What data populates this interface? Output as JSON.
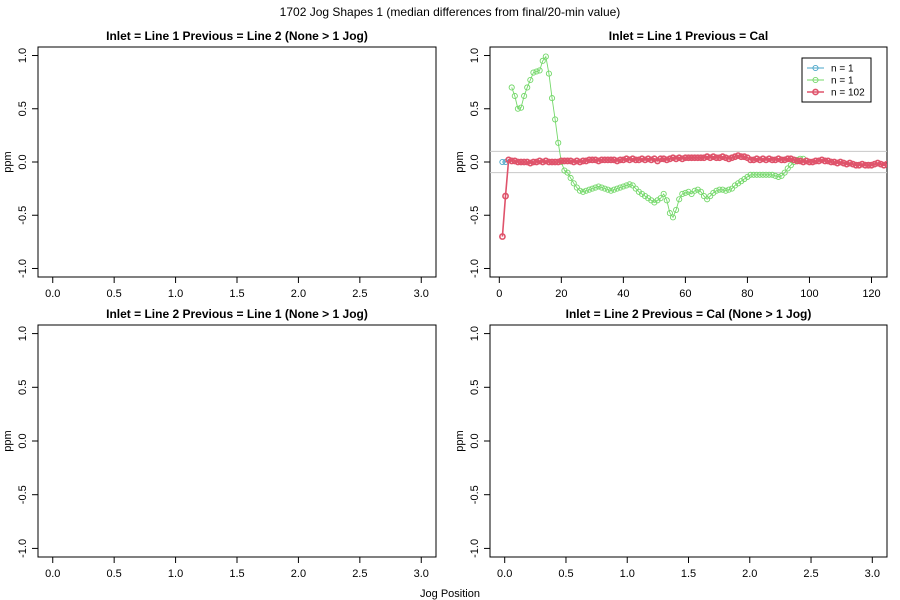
{
  "figure": {
    "title": "1702 Jog Shapes 1 (median differences from final/20-min value)",
    "xlabel": "Jog Position"
  },
  "chart_data": [
    {
      "type": "scatter",
      "title": "Inlet = Line 1  Previous = Line 2 (None > 1 Jog)",
      "xlabel": "",
      "ylabel": "ppm",
      "xlim": [
        0,
        3
      ],
      "ylim": [
        -1,
        1
      ],
      "xticks": [
        "0.0",
        "0.5",
        "1.0",
        "1.5",
        "2.0",
        "2.5",
        "3.0"
      ],
      "yticks": [
        "-1.0",
        "-0.5",
        "0.0",
        "0.5",
        "1.0"
      ],
      "series": [],
      "legend": null
    },
    {
      "type": "line",
      "title": "Inlet = Line 1  Previous = Cal",
      "xlabel": "",
      "ylabel": "ppm",
      "xlim": [
        0,
        125
      ],
      "ylim": [
        -1,
        1
      ],
      "xticks": [
        "0",
        "20",
        "40",
        "60",
        "80",
        "100",
        "120"
      ],
      "yticks": [
        "-1.0",
        "-0.5",
        "0.0",
        "0.5",
        "1.0"
      ],
      "reference_lines_y": [
        0.1,
        -0.1
      ],
      "legend": "top-right",
      "series": [
        {
          "name": "n = 1",
          "color": "#4aa6c8",
          "x": [
            1,
            2,
            3
          ],
          "y": [
            0.0,
            0.0,
            0.02
          ]
        },
        {
          "name": "n = 1",
          "color": "#74d86a",
          "x": [
            4,
            5,
            6,
            7,
            8,
            9,
            10,
            11,
            12,
            13,
            14,
            15,
            16,
            17,
            18,
            19,
            20,
            21,
            22,
            23,
            24,
            25,
            26,
            27,
            28,
            29,
            30,
            31,
            32,
            33,
            34,
            35,
            36,
            37,
            38,
            39,
            40,
            41,
            42,
            43,
            44,
            45,
            46,
            47,
            48,
            49,
            50,
            51,
            52,
            53,
            54,
            55,
            56,
            57,
            58,
            59,
            60,
            61,
            62,
            63,
            64,
            65,
            66,
            67,
            68,
            69,
            70,
            71,
            72,
            73,
            74,
            75,
            76,
            77,
            78,
            79,
            80,
            81,
            82,
            83,
            84,
            85,
            86,
            87,
            88,
            89,
            90,
            91,
            92,
            93,
            94,
            95,
            96,
            97,
            98
          ],
          "y": [
            0.7,
            0.62,
            0.5,
            0.51,
            0.62,
            0.7,
            0.77,
            0.84,
            0.85,
            0.86,
            0.95,
            0.99,
            0.83,
            0.6,
            0.4,
            0.18,
            0.0,
            -0.08,
            -0.1,
            -0.15,
            -0.2,
            -0.24,
            -0.27,
            -0.28,
            -0.27,
            -0.26,
            -0.25,
            -0.24,
            -0.23,
            -0.24,
            -0.25,
            -0.26,
            -0.27,
            -0.26,
            -0.25,
            -0.24,
            -0.23,
            -0.22,
            -0.21,
            -0.22,
            -0.25,
            -0.28,
            -0.3,
            -0.32,
            -0.34,
            -0.36,
            -0.38,
            -0.36,
            -0.34,
            -0.3,
            -0.36,
            -0.48,
            -0.52,
            -0.45,
            -0.35,
            -0.3,
            -0.29,
            -0.28,
            -0.3,
            -0.27,
            -0.26,
            -0.28,
            -0.32,
            -0.35,
            -0.32,
            -0.29,
            -0.27,
            -0.26,
            -0.26,
            -0.27,
            -0.26,
            -0.25,
            -0.22,
            -0.2,
            -0.18,
            -0.16,
            -0.14,
            -0.12,
            -0.12,
            -0.12,
            -0.12,
            -0.12,
            -0.12,
            -0.12,
            -0.12,
            -0.13,
            -0.14,
            -0.13,
            -0.1,
            -0.06,
            -0.03,
            0.0,
            0.02,
            0.03,
            0.03
          ]
        },
        {
          "name": "n = 102",
          "color": "#df536b",
          "x": [
            1,
            2,
            3,
            4,
            5,
            6,
            7,
            8,
            9,
            10,
            11,
            12,
            13,
            14,
            15,
            16,
            17,
            18,
            19,
            20,
            21,
            22,
            23,
            24,
            25,
            26,
            27,
            28,
            29,
            30,
            31,
            32,
            33,
            34,
            35,
            36,
            37,
            38,
            39,
            40,
            41,
            42,
            43,
            44,
            45,
            46,
            47,
            48,
            49,
            50,
            51,
            52,
            53,
            54,
            55,
            56,
            57,
            58,
            59,
            60,
            61,
            62,
            63,
            64,
            65,
            66,
            67,
            68,
            69,
            70,
            71,
            72,
            73,
            74,
            75,
            76,
            77,
            78,
            79,
            80,
            81,
            82,
            83,
            84,
            85,
            86,
            87,
            88,
            89,
            90,
            91,
            92,
            93,
            94,
            95,
            96,
            97,
            98,
            99,
            100,
            101,
            102,
            103,
            104,
            105,
            106,
            107,
            108,
            109,
            110,
            111,
            112,
            113,
            114,
            115,
            116,
            117,
            118,
            119,
            120,
            121,
            122,
            123,
            124,
            125
          ],
          "y": [
            -0.7,
            -0.32,
            0.02,
            0.01,
            0.01,
            0.0,
            0.0,
            0.0,
            0.0,
            -0.01,
            0.0,
            0.0,
            0.01,
            0.0,
            0.01,
            0.0,
            0.0,
            0.0,
            0.0,
            0.01,
            0.01,
            0.01,
            0.01,
            0.0,
            0.01,
            0.0,
            0.01,
            0.01,
            0.02,
            0.02,
            0.02,
            0.01,
            0.02,
            0.02,
            0.02,
            0.02,
            0.02,
            0.01,
            0.02,
            0.02,
            0.03,
            0.02,
            0.03,
            0.02,
            0.02,
            0.03,
            0.02,
            0.03,
            0.02,
            0.03,
            0.01,
            0.03,
            0.03,
            0.02,
            0.03,
            0.04,
            0.03,
            0.04,
            0.03,
            0.04,
            0.04,
            0.04,
            0.04,
            0.04,
            0.04,
            0.04,
            0.05,
            0.04,
            0.05,
            0.04,
            0.04,
            0.05,
            0.04,
            0.03,
            0.04,
            0.05,
            0.06,
            0.05,
            0.05,
            0.04,
            0.02,
            0.02,
            0.03,
            0.02,
            0.03,
            0.02,
            0.03,
            0.02,
            0.02,
            0.03,
            0.02,
            0.02,
            0.03,
            0.03,
            0.02,
            0.01,
            0.01,
            0.0,
            0.01,
            0.0,
            0.0,
            0.01,
            0.01,
            0.02,
            0.01,
            0.01,
            0.0,
            0.0,
            -0.01,
            0.0,
            -0.01,
            -0.02,
            -0.01,
            -0.02,
            -0.03,
            -0.03,
            -0.02,
            -0.03,
            -0.03,
            -0.03,
            -0.02,
            -0.01,
            -0.02,
            -0.03,
            -0.02
          ]
        }
      ]
    },
    {
      "type": "scatter",
      "title": "Inlet = Line 2  Previous = Line 1 (None > 1 Jog)",
      "xlabel": "",
      "ylabel": "ppm",
      "xlim": [
        0,
        3
      ],
      "ylim": [
        -1,
        1
      ],
      "xticks": [
        "0.0",
        "0.5",
        "1.0",
        "1.5",
        "2.0",
        "2.5",
        "3.0"
      ],
      "yticks": [
        "-1.0",
        "-0.5",
        "0.0",
        "0.5",
        "1.0"
      ],
      "series": [],
      "legend": null
    },
    {
      "type": "scatter",
      "title": "Inlet = Line 2  Previous = Cal (None > 1 Jog)",
      "xlabel": "",
      "ylabel": "ppm",
      "xlim": [
        0,
        3
      ],
      "ylim": [
        -1,
        1
      ],
      "xticks": [
        "0.0",
        "0.5",
        "1.0",
        "1.5",
        "2.0",
        "2.5",
        "3.0"
      ],
      "yticks": [
        "-1.0",
        "-0.5",
        "0.0",
        "0.5",
        "1.0"
      ],
      "series": [],
      "legend": null
    }
  ]
}
